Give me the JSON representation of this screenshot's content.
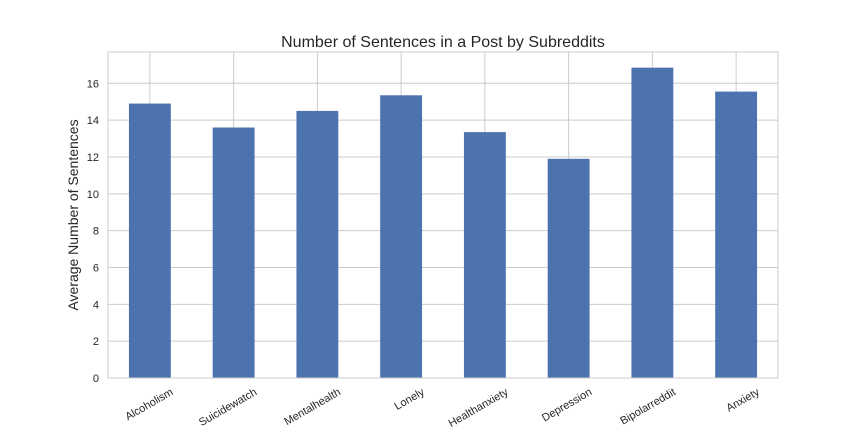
{
  "chart_data": {
    "type": "bar",
    "title": "Number of Sentences in a Post by Subreddits",
    "xlabel": "",
    "ylabel": "Average Number of Sentences",
    "categories": [
      "Alcoholism",
      "Suicidewatch",
      "Mentalhealth",
      "Lonely",
      "Healthanxiety",
      "Depression",
      "Bipolarreddit",
      "Anxiety"
    ],
    "values": [
      14.9,
      13.6,
      14.5,
      15.35,
      13.35,
      11.9,
      16.85,
      15.55
    ],
    "ylim": [
      0,
      17.7
    ],
    "yticks": [
      0,
      2,
      4,
      6,
      8,
      10,
      12,
      14,
      16
    ],
    "grid": true,
    "bar_color": "#4c72b0"
  }
}
